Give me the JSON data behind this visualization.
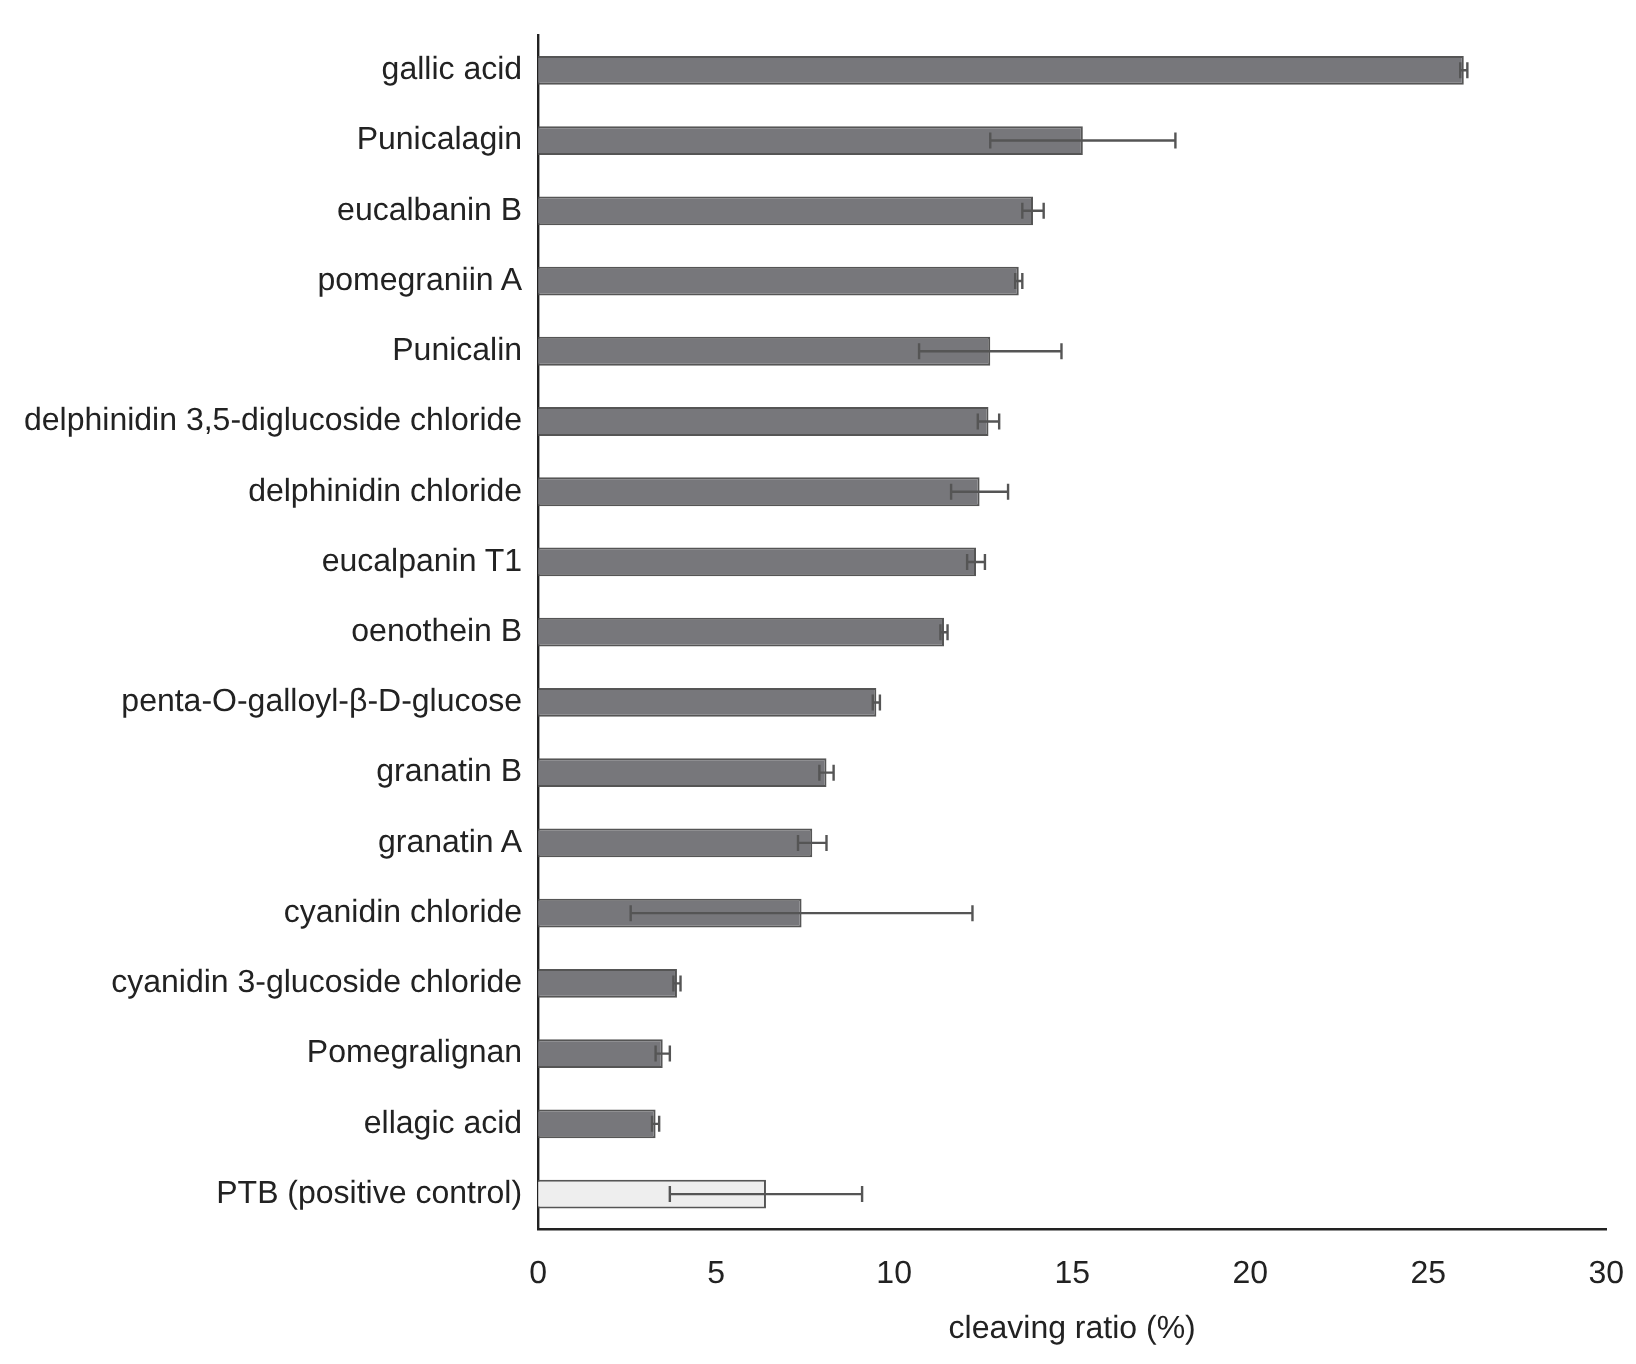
{
  "chart_data": {
    "type": "bar",
    "orientation": "horizontal",
    "xlabel": "cleaving ratio (%)",
    "categories": [
      "gallic acid",
      "Punicalagin",
      "eucalbanin B",
      "pomegraniin A",
      "Punicalin",
      "delphinidin 3,5-diglucoside chloride",
      "delphinidin chloride",
      "eucalpanin T1",
      "oenothein B",
      "penta-O-galloyl-β-D-glucose",
      "granatin B",
      "granatin A",
      "cyanidin chloride",
      "cyanidin 3-glucoside chloride",
      "Pomegralignan",
      "ellagic acid",
      "PTB (positive control)"
    ],
    "values": [
      26.0,
      15.3,
      13.9,
      13.5,
      12.7,
      12.65,
      12.4,
      12.3,
      11.4,
      9.5,
      8.1,
      7.7,
      7.4,
      3.9,
      3.5,
      3.3,
      6.4
    ],
    "errors": [
      0.1,
      2.6,
      0.3,
      0.1,
      2.0,
      0.3,
      0.8,
      0.25,
      0.1,
      0.1,
      0.2,
      0.4,
      4.8,
      0.1,
      0.2,
      0.1,
      2.7
    ],
    "colors": [
      "#77777b",
      "#77777b",
      "#77777b",
      "#77777b",
      "#77777b",
      "#77777b",
      "#77777b",
      "#77777b",
      "#77777b",
      "#77777b",
      "#77777b",
      "#77777b",
      "#77777b",
      "#77777b",
      "#77777b",
      "#77777b",
      "#eeeeee"
    ],
    "xlim": [
      0,
      30
    ],
    "xticks": [
      0,
      5,
      10,
      15,
      20,
      25,
      30
    ],
    "grid": false,
    "legend": false
  }
}
